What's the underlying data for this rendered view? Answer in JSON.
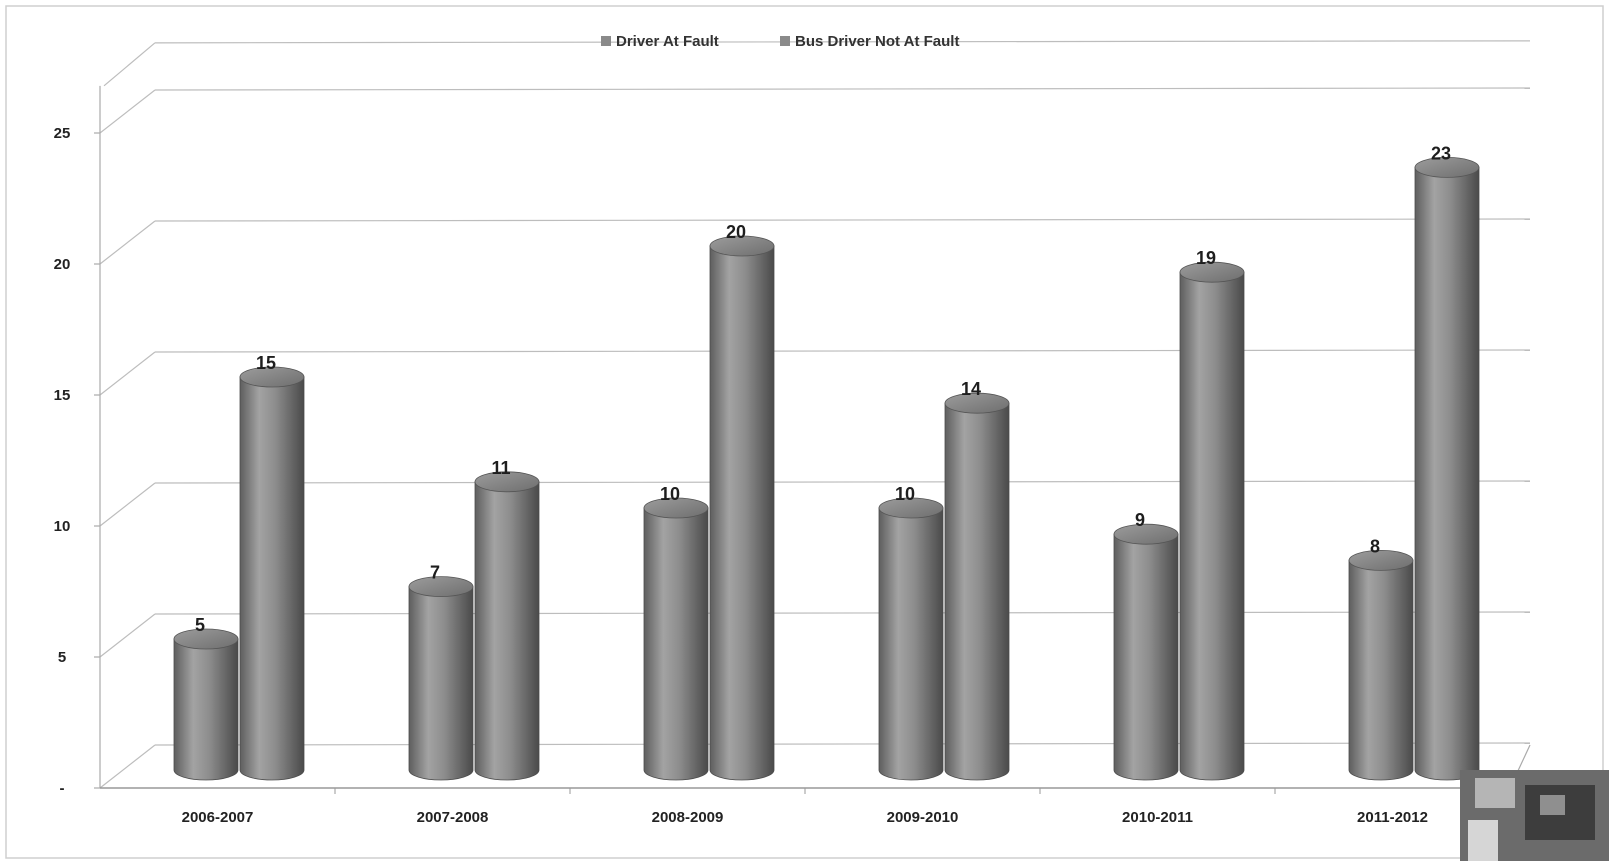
{
  "chart_data": {
    "type": "bar",
    "title": "",
    "xlabel": "",
    "ylabel": "",
    "categories": [
      "2006-2007",
      "2007-2008",
      "2008-2009",
      "2009-2010",
      "2010-2011",
      "2011-2012"
    ],
    "series": [
      {
        "name": "Driver At Fault",
        "values": [
          5,
          7,
          10,
          10,
          9,
          8
        ]
      },
      {
        "name": "Bus Driver Not At Fault",
        "values": [
          15,
          11,
          20,
          14,
          19,
          23
        ]
      }
    ],
    "y_ticks": [
      "-",
      "5",
      "10",
      "15",
      "20",
      "25"
    ],
    "y_tick_values": [
      0,
      5,
      10,
      15,
      20,
      25
    ],
    "ylim": [
      0,
      25
    ],
    "grid": true,
    "legend_position": "top-center",
    "style": "3d-cylinder",
    "bar_color": "#8a8a8a"
  }
}
